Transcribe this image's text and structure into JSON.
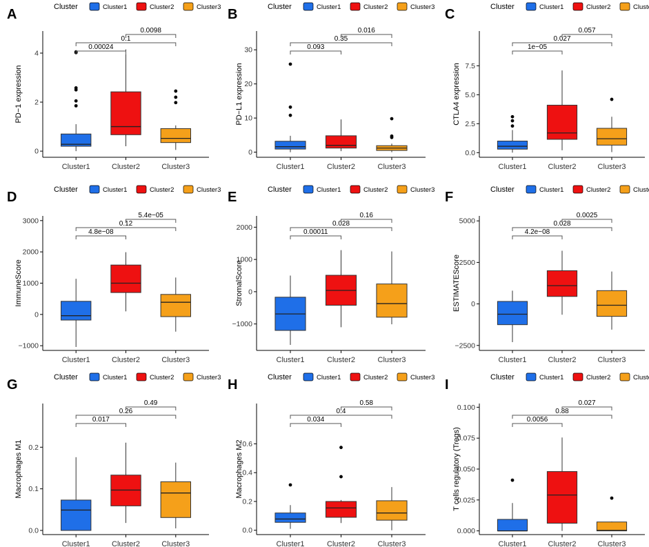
{
  "colors": {
    "Cluster1": "#1f6fe8",
    "Cluster2": "#ee1111",
    "Cluster3": "#f5a01a"
  },
  "legend_title": "Cluster",
  "legend_items": [
    "Cluster1",
    "Cluster2",
    "Cluster3"
  ],
  "chart_data": [
    {
      "type": "box",
      "label": "A",
      "ylabel": "PD−1 expression",
      "categories": [
        "Cluster1",
        "Cluster2",
        "Cluster3"
      ],
      "ylim": [
        -0.25,
        4.9
      ],
      "ticks": [
        0,
        2,
        4
      ],
      "tick_labels": [
        "0",
        "2",
        "4"
      ],
      "boxes": [
        {
          "min": 0.0,
          "q1": 0.2,
          "median": 0.28,
          "q3": 0.7,
          "max": 1.1,
          "outliers": [
            1.85,
            2.05,
            2.5,
            2.58,
            4.02,
            4.05
          ]
        },
        {
          "min": 0.2,
          "q1": 0.67,
          "median": 1.0,
          "q3": 2.42,
          "max": 4.15,
          "outliers": []
        },
        {
          "min": 0.05,
          "q1": 0.35,
          "median": 0.52,
          "q3": 0.92,
          "max": 1.05,
          "outliers": [
            1.98,
            2.2,
            2.45
          ]
        }
      ],
      "comparisons": [
        {
          "from": 0,
          "to": 1,
          "p": "0.00024"
        },
        {
          "from": 0,
          "to": 2,
          "p": "0.1"
        },
        {
          "from": 1,
          "to": 2,
          "p": "0.0098"
        }
      ]
    },
    {
      "type": "box",
      "label": "B",
      "ylabel": "PD−L1 expression",
      "categories": [
        "Cluster1",
        "Cluster2",
        "Cluster3"
      ],
      "ylim": [
        -1.5,
        35.5
      ],
      "ticks": [
        0,
        10,
        20,
        30
      ],
      "tick_labels": [
        "0",
        "10",
        "20",
        "30"
      ],
      "boxes": [
        {
          "min": 0.0,
          "q1": 0.9,
          "median": 1.6,
          "q3": 3.2,
          "max": 4.8,
          "outliers": [
            10.8,
            13.2,
            25.8
          ]
        },
        {
          "min": 0.3,
          "q1": 1.2,
          "median": 2.0,
          "q3": 4.8,
          "max": 9.6,
          "outliers": []
        },
        {
          "min": 0.0,
          "q1": 0.5,
          "median": 1.2,
          "q3": 1.9,
          "max": 2.5,
          "outliers": [
            4.3,
            4.7,
            9.8
          ]
        }
      ],
      "comparisons": [
        {
          "from": 0,
          "to": 1,
          "p": "0.093"
        },
        {
          "from": 0,
          "to": 2,
          "p": "0.35"
        },
        {
          "from": 1,
          "to": 2,
          "p": "0.016"
        }
      ]
    },
    {
      "type": "box",
      "label": "C",
      "ylabel": "CTLA4 expression",
      "categories": [
        "Cluster1",
        "Cluster2",
        "Cluster3"
      ],
      "ylim": [
        -0.4,
        10.5
      ],
      "ticks": [
        0,
        2.5,
        5,
        7.5
      ],
      "tick_labels": [
        "0.0",
        "2.5",
        "5.0",
        "7.5"
      ],
      "boxes": [
        {
          "min": 0.0,
          "q1": 0.3,
          "median": 0.55,
          "q3": 1.0,
          "max": 1.95,
          "outliers": [
            2.3,
            2.75,
            3.1
          ]
        },
        {
          "min": 0.2,
          "q1": 1.15,
          "median": 1.7,
          "q3": 4.1,
          "max": 7.1,
          "outliers": []
        },
        {
          "min": 0.05,
          "q1": 0.65,
          "median": 1.2,
          "q3": 2.1,
          "max": 3.1,
          "outliers": [
            4.6
          ]
        }
      ],
      "comparisons": [
        {
          "from": 0,
          "to": 1,
          "p": "1e−05"
        },
        {
          "from": 0,
          "to": 2,
          "p": "0.027"
        },
        {
          "from": 1,
          "to": 2,
          "p": "0.057"
        }
      ]
    },
    {
      "type": "box",
      "label": "D",
      "ylabel": "ImmuneScore",
      "categories": [
        "Cluster1",
        "Cluster2",
        "Cluster3"
      ],
      "ylim": [
        -1150,
        3150
      ],
      "ticks": [
        -1000,
        0,
        1000,
        2000,
        3000
      ],
      "tick_labels": [
        "−1000",
        "0",
        "1000",
        "2000",
        "3000"
      ],
      "boxes": [
        {
          "min": -1040,
          "q1": -180,
          "median": -40,
          "q3": 420,
          "max": 1140,
          "outliers": []
        },
        {
          "min": 100,
          "q1": 700,
          "median": 1000,
          "q3": 1580,
          "max": 1990,
          "outliers": []
        },
        {
          "min": -550,
          "q1": -70,
          "median": 390,
          "q3": 640,
          "max": 1180,
          "outliers": []
        }
      ],
      "comparisons": [
        {
          "from": 0,
          "to": 1,
          "p": "4.8e−08"
        },
        {
          "from": 0,
          "to": 2,
          "p": "0.12"
        },
        {
          "from": 1,
          "to": 2,
          "p": "5.4e−05"
        }
      ]
    },
    {
      "type": "box",
      "label": "E",
      "ylabel": "StromalScore",
      "categories": [
        "Cluster1",
        "Cluster2",
        "Cluster3"
      ],
      "ylim": [
        -1820,
        2350
      ],
      "ticks": [
        -1000,
        0,
        1000,
        2000
      ],
      "tick_labels": [
        "−1000",
        "0",
        "1000",
        "2000"
      ],
      "boxes": [
        {
          "min": -1650,
          "q1": -1200,
          "median": -690,
          "q3": -170,
          "max": 500,
          "outliers": []
        },
        {
          "min": -1100,
          "q1": -420,
          "median": 40,
          "q3": 510,
          "max": 1290,
          "outliers": []
        },
        {
          "min": -1010,
          "q1": -790,
          "median": -370,
          "q3": 240,
          "max": 1250,
          "outliers": []
        }
      ],
      "comparisons": [
        {
          "from": 0,
          "to": 1,
          "p": "0.00011"
        },
        {
          "from": 0,
          "to": 2,
          "p": "0.028"
        },
        {
          "from": 1,
          "to": 2,
          "p": "0.16"
        }
      ]
    },
    {
      "type": "box",
      "label": "F",
      "ylabel": "ESTIMATEScore",
      "categories": [
        "Cluster1",
        "Cluster2",
        "Cluster3"
      ],
      "ylim": [
        -2800,
        5300
      ],
      "ticks": [
        -2500,
        0,
        2500,
        5000
      ],
      "tick_labels": [
        "−2500",
        "0",
        "2500",
        "5000"
      ],
      "boxes": [
        {
          "min": -2300,
          "q1": -1250,
          "median": -620,
          "q3": 150,
          "max": 800,
          "outliers": []
        },
        {
          "min": -650,
          "q1": 450,
          "median": 1100,
          "q3": 2000,
          "max": 3200,
          "outliers": []
        },
        {
          "min": -1550,
          "q1": -750,
          "median": -80,
          "q3": 800,
          "max": 1950,
          "outliers": []
        }
      ],
      "comparisons": [
        {
          "from": 0,
          "to": 1,
          "p": "4.2e−08"
        },
        {
          "from": 0,
          "to": 2,
          "p": "0.028"
        },
        {
          "from": 1,
          "to": 2,
          "p": "0.0025"
        }
      ]
    },
    {
      "type": "box",
      "label": "G",
      "ylabel": "Macrophages M1",
      "categories": [
        "Cluster1",
        "Cluster2",
        "Cluster3"
      ],
      "ylim": [
        -0.01,
        0.305
      ],
      "ticks": [
        0,
        0.1,
        0.2
      ],
      "tick_labels": [
        "0.0",
        "0.1",
        "0.2"
      ],
      "boxes": [
        {
          "min": 0.0,
          "q1": 0.0,
          "median": 0.049,
          "q3": 0.073,
          "max": 0.176,
          "outliers": []
        },
        {
          "min": 0.018,
          "q1": 0.059,
          "median": 0.097,
          "q3": 0.133,
          "max": 0.211,
          "outliers": []
        },
        {
          "min": 0.005,
          "q1": 0.031,
          "median": 0.09,
          "q3": 0.117,
          "max": 0.163,
          "outliers": []
        }
      ],
      "comparisons": [
        {
          "from": 0,
          "to": 1,
          "p": "0.017"
        },
        {
          "from": 0,
          "to": 2,
          "p": "0.26"
        },
        {
          "from": 1,
          "to": 2,
          "p": "0.49"
        }
      ]
    },
    {
      "type": "box",
      "label": "H",
      "ylabel": "Macrophages M2",
      "categories": [
        "Cluster1",
        "Cluster2",
        "Cluster3"
      ],
      "ylim": [
        -0.03,
        0.88
      ],
      "ticks": [
        0,
        0.2,
        0.4,
        0.6
      ],
      "tick_labels": [
        "0.0",
        "0.2",
        "0.4",
        "0.6"
      ],
      "boxes": [
        {
          "min": 0.01,
          "q1": 0.055,
          "median": 0.078,
          "q3": 0.12,
          "max": 0.175,
          "outliers": [
            0.315
          ]
        },
        {
          "min": 0.05,
          "q1": 0.09,
          "median": 0.155,
          "q3": 0.2,
          "max": 0.21,
          "outliers": [
            0.372,
            0.575
          ]
        },
        {
          "min": 0.0,
          "q1": 0.07,
          "median": 0.12,
          "q3": 0.205,
          "max": 0.3,
          "outliers": []
        }
      ],
      "comparisons": [
        {
          "from": 0,
          "to": 1,
          "p": "0.034"
        },
        {
          "from": 0,
          "to": 2,
          "p": "0.4"
        },
        {
          "from": 1,
          "to": 2,
          "p": "0.58"
        }
      ]
    },
    {
      "type": "box",
      "label": "I",
      "ylabel": "T cells regulatory (Tregs)",
      "categories": [
        "Cluster1",
        "Cluster2",
        "Cluster3"
      ],
      "ylim": [
        -0.003,
        0.103
      ],
      "ticks": [
        0,
        0.025,
        0.05,
        0.075,
        0.1
      ],
      "tick_labels": [
        "0.000",
        "0.025",
        "0.050",
        "0.075",
        "0.100"
      ],
      "boxes": [
        {
          "min": 0.0,
          "q1": 0.0,
          "median": 0.0,
          "q3": 0.0093,
          "max": 0.0225,
          "outliers": [
            0.041
          ]
        },
        {
          "min": 0.0,
          "q1": 0.0062,
          "median": 0.029,
          "q3": 0.048,
          "max": 0.0755,
          "outliers": []
        },
        {
          "min": 0.0,
          "q1": 0.0,
          "median": 0.0004,
          "q3": 0.0072,
          "max": 0.0075,
          "outliers": [
            0.0265
          ]
        }
      ],
      "comparisons": [
        {
          "from": 0,
          "to": 1,
          "p": "0.0056"
        },
        {
          "from": 0,
          "to": 2,
          "p": "0.88"
        },
        {
          "from": 1,
          "to": 2,
          "p": "0.027"
        }
      ]
    }
  ]
}
